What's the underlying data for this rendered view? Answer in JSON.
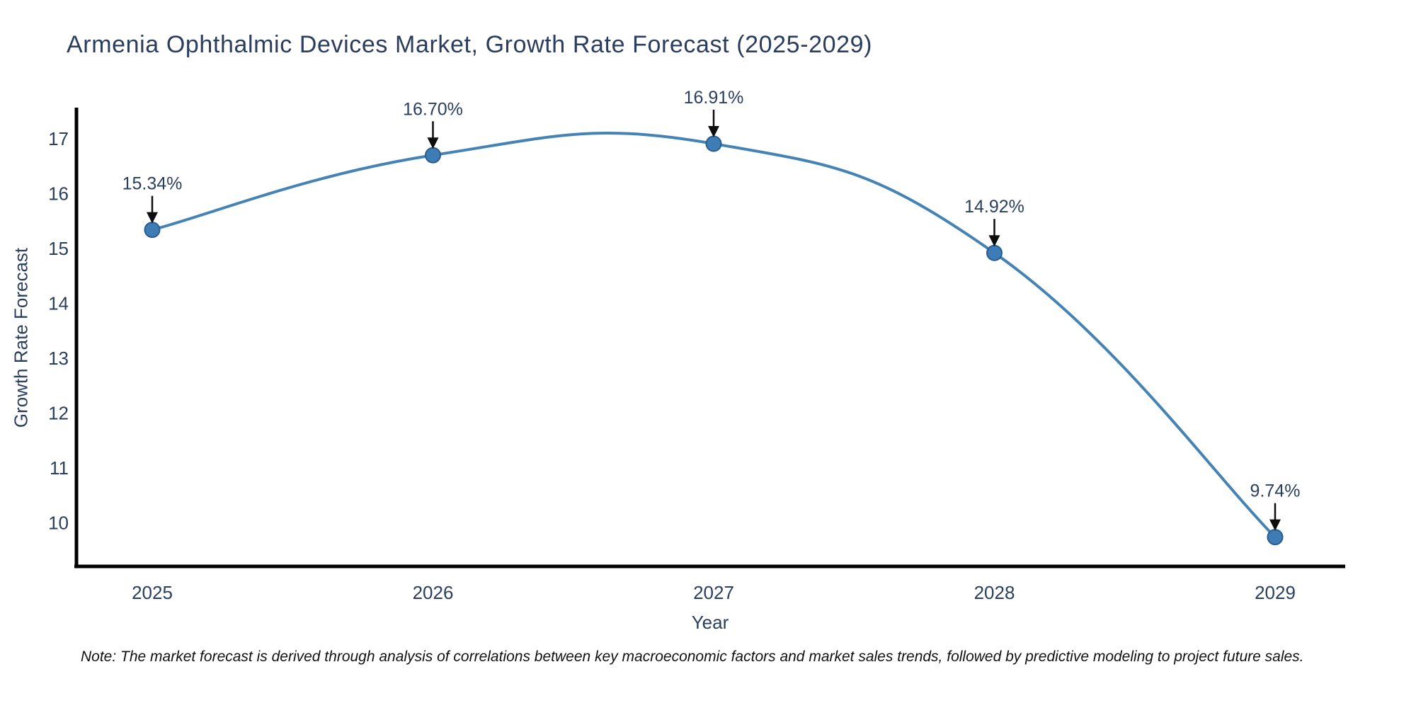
{
  "note": "Note: The market forecast is derived through analysis of correlations between key macroeconomic factors and market sales trends, followed by predictive modeling to project future sales.",
  "chart_data": {
    "type": "line",
    "line_shape": "spline",
    "title": "Armenia Ophthalmic Devices Market, Growth Rate Forecast (2025-2029)",
    "xlabel": "Year",
    "ylabel": "Growth Rate Forecast",
    "categories": [
      "2025",
      "2026",
      "2027",
      "2028",
      "2029"
    ],
    "x": [
      2025,
      2026,
      2027,
      2028,
      2029
    ],
    "values": [
      15.34,
      16.7,
      16.91,
      14.92,
      9.74
    ],
    "point_labels": [
      "15.34%",
      "16.70%",
      "16.91%",
      "14.92%",
      "9.74%"
    ],
    "yticks": [
      10,
      11,
      12,
      13,
      14,
      15,
      16,
      17
    ],
    "ylim": [
      9.2,
      17.6
    ],
    "grid": false,
    "legend": "none",
    "markers": true,
    "annotations_with_arrows": true,
    "colors": {
      "line": "#4583b5",
      "marker_fill": "#3e7cb5",
      "marker_edge": "#2a5d8f",
      "axis": "#000000",
      "tick_text": "#2a3f5f",
      "title_text": "#2b3d5f",
      "annotation_text": "#243447",
      "arrow": "#0d0d0d",
      "background": "#ffffff"
    }
  }
}
